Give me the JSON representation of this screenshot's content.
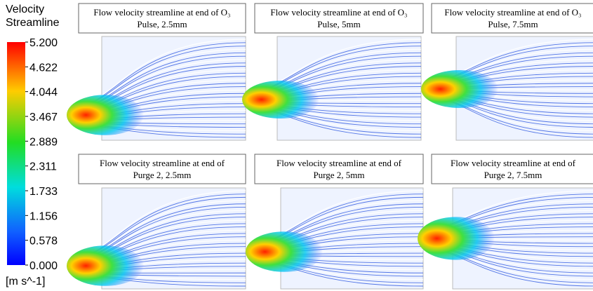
{
  "legend": {
    "title": [
      "Velocity",
      "Streamline"
    ],
    "ticks": [
      "5.200",
      "4.622",
      "4.044",
      "3.467",
      "2.889",
      "2.311",
      "1.733",
      "1.156",
      "0.578",
      "0.000"
    ],
    "unit": "[m s^-1]"
  },
  "panels": [
    {
      "title": [
        "Flow velocity streamline at end of O₃",
        "Pulse, 2.5mm"
      ]
    },
    {
      "title": [
        "Flow velocity streamline at end of O₃",
        "Pulse, 5mm"
      ]
    },
    {
      "title": [
        "Flow velocity streamline at end of O₃",
        "Pulse, 7.5mm"
      ]
    },
    {
      "title": [
        "Flow velocity streamline at end of",
        "Purge 2, 2.5mm"
      ]
    },
    {
      "title": [
        "Flow velocity streamline at end of",
        "Purge 2, 5mm"
      ]
    },
    {
      "title": [
        "Flow velocity streamline at end of",
        "Purge 2, 7.5mm"
      ]
    }
  ]
}
